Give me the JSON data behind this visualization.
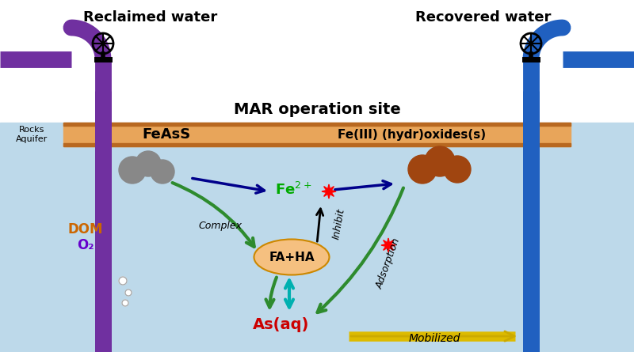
{
  "title": "MAR operation site",
  "reclaimed_label": "Reclaimed water",
  "recovered_label": "Recovered water",
  "rocks_aquifer_label": "Rocks\nAquifer",
  "feass_label": "FeAsS",
  "fe3_label": "Fe(III) (hydr)oxides(s)",
  "faha_label": "FA+HA",
  "asaq_label": "As(aq)",
  "dom_label": "DOM",
  "o2_label": "O₂",
  "complex_label": "Complex",
  "inhibit_label": "Inhibit",
  "adsorption_label": "Adsorption",
  "mobilized_label": "Mobilized",
  "bg_water": "#bdd9ea",
  "bg_white": "#ffffff",
  "aquifer_band": "#e8a55a",
  "aquifer_dark": "#b86820",
  "rock_grey": "#888888",
  "rock_brown": "#a04510",
  "pipe_purple": "#7030a0",
  "pipe_blue": "#2060c0",
  "arrow_dark_blue": "#00008b",
  "arrow_green": "#2e8b2e",
  "arrow_cyan": "#00b0b0",
  "arrow_yellow_fill": "#ddbb00",
  "arrow_yellow_edge": "#ccaa00",
  "fe2_color": "#00aa00",
  "asaq_color": "#cc0000",
  "dom_color": "#cc6600",
  "o2_color": "#6600cc",
  "star_color": "#ff0000",
  "faha_fill": "#f5c080",
  "faha_edge": "#cc8800",
  "black": "#000000",
  "white": "#ffffff"
}
